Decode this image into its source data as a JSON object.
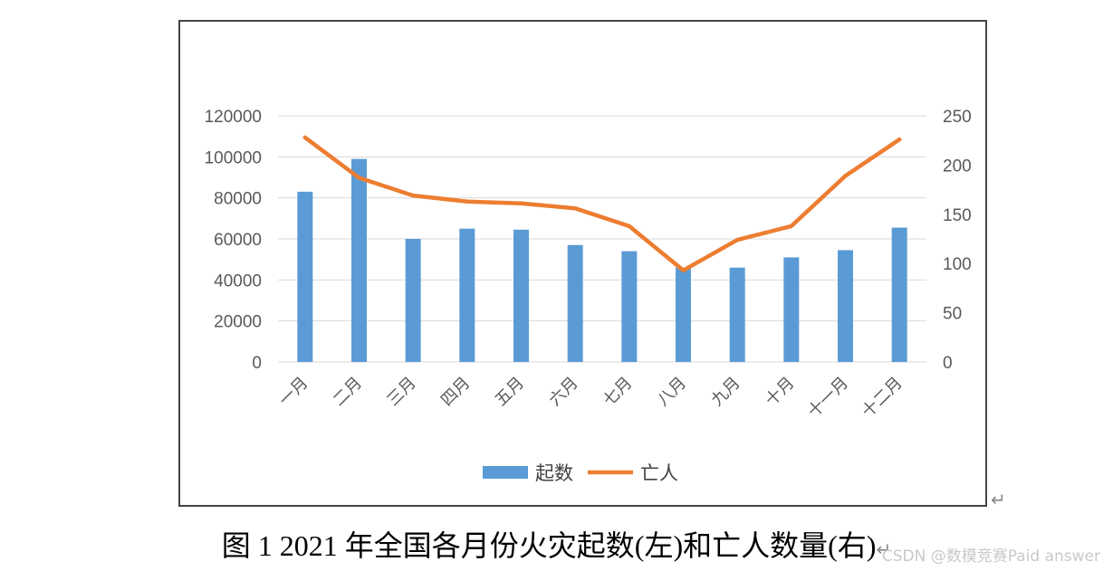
{
  "chart_data": {
    "type": "bar+line",
    "categories": [
      "一月",
      "二月",
      "三月",
      "四月",
      "五月",
      "六月",
      "七月",
      "八月",
      "九月",
      "十月",
      "十一月",
      "十二月"
    ],
    "series": [
      {
        "name": "起数",
        "type": "bar",
        "axis": "left",
        "color": "#5b9bd5",
        "values": [
          83000,
          99000,
          60000,
          65000,
          64500,
          57000,
          54000,
          46000,
          46000,
          51000,
          54500,
          65500
        ]
      },
      {
        "name": "亡人",
        "type": "line",
        "axis": "right",
        "color": "#ed7d31",
        "values": [
          228,
          187,
          169,
          163,
          161,
          156,
          138,
          93,
          124,
          138,
          189,
          226
        ]
      }
    ],
    "y_left": {
      "min": 0,
      "max": 120000,
      "ticks": [
        "0",
        "20000",
        "40000",
        "60000",
        "80000",
        "100000",
        "120000"
      ]
    },
    "y_right": {
      "min": 0,
      "max": 250,
      "ticks": [
        "0",
        "50",
        "100",
        "150",
        "200",
        "250"
      ]
    },
    "grid": true,
    "legend": "bottom-center"
  },
  "caption": "图 1 2021 年全国各月份火灾起数(左)和亡人数量(右)",
  "caption_mark": "↵",
  "return_mark": "↵",
  "watermark": "CSDN @数模竞赛Paid answer"
}
